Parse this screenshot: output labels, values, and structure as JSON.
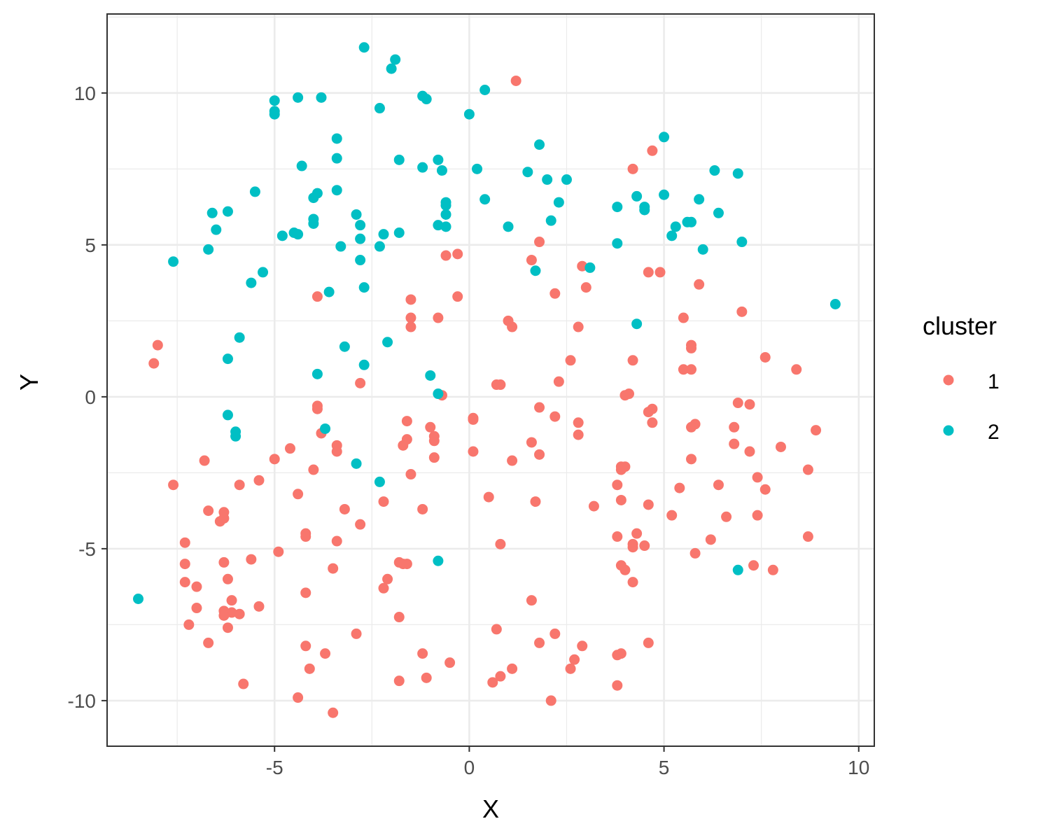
{
  "chart_data": {
    "type": "scatter",
    "title": "",
    "xlabel": "X",
    "ylabel": "Y",
    "xlim": [
      -9.3,
      10.4
    ],
    "ylim": [
      -11.5,
      12.6
    ],
    "x_ticks": [
      -5,
      0,
      5,
      10
    ],
    "y_ticks": [
      -10,
      -5,
      0,
      5,
      10
    ],
    "x_tick_labels": [
      "-5",
      "0",
      "5",
      "10"
    ],
    "y_tick_labels": [
      "-10",
      "-5",
      "0",
      "5",
      "10"
    ],
    "grid": true,
    "legend": {
      "title": "cluster",
      "position": "right"
    },
    "series": [
      {
        "name": "1",
        "color": "#F8766D",
        "points": [
          [
            1.2,
            10.4
          ],
          [
            4.7,
            8.1
          ],
          [
            4.2,
            7.5
          ],
          [
            1.8,
            5.1
          ],
          [
            -0.3,
            4.7
          ],
          [
            -0.6,
            4.65
          ],
          [
            1.6,
            4.5
          ],
          [
            2.9,
            4.3
          ],
          [
            4.6,
            4.1
          ],
          [
            4.9,
            4.1
          ],
          [
            5.9,
            3.7
          ],
          [
            3.0,
            3.6
          ],
          [
            2.2,
            3.4
          ],
          [
            -3.9,
            3.3
          ],
          [
            -0.3,
            3.3
          ],
          [
            -1.5,
            3.2
          ],
          [
            7.0,
            2.8
          ],
          [
            -1.5,
            2.6
          ],
          [
            -0.8,
            2.6
          ],
          [
            5.5,
            2.6
          ],
          [
            1.0,
            2.5
          ],
          [
            1.1,
            2.3
          ],
          [
            -1.5,
            2.3
          ],
          [
            2.8,
            2.3
          ],
          [
            -8.0,
            1.7
          ],
          [
            5.7,
            1.7
          ],
          [
            5.7,
            1.6
          ],
          [
            7.6,
            1.3
          ],
          [
            4.2,
            1.2
          ],
          [
            2.6,
            1.2
          ],
          [
            -8.1,
            1.1
          ],
          [
            5.5,
            0.9
          ],
          [
            5.7,
            0.9
          ],
          [
            8.4,
            0.9
          ],
          [
            -2.8,
            0.45
          ],
          [
            2.3,
            0.5
          ],
          [
            0.7,
            0.4
          ],
          [
            0.8,
            0.4
          ],
          [
            -0.7,
            0.05
          ],
          [
            4.1,
            0.1
          ],
          [
            4.0,
            0.05
          ],
          [
            6.9,
            -0.2
          ],
          [
            7.2,
            -0.25
          ],
          [
            -3.9,
            -0.3
          ],
          [
            -3.9,
            -0.4
          ],
          [
            1.8,
            -0.35
          ],
          [
            4.7,
            -0.4
          ],
          [
            4.6,
            -0.5
          ],
          [
            0.1,
            -0.7
          ],
          [
            0.1,
            -0.75
          ],
          [
            2.2,
            -0.65
          ],
          [
            -1.6,
            -0.8
          ],
          [
            2.8,
            -0.85
          ],
          [
            4.7,
            -0.85
          ],
          [
            5.8,
            -0.9
          ],
          [
            5.7,
            -1.0
          ],
          [
            6.8,
            -1.0
          ],
          [
            -1.0,
            -1.0
          ],
          [
            -0.9,
            -1.3
          ],
          [
            8.9,
            -1.1
          ],
          [
            -3.8,
            -1.2
          ],
          [
            2.8,
            -1.25
          ],
          [
            -1.6,
            -1.4
          ],
          [
            -0.9,
            -1.45
          ],
          [
            1.6,
            -1.5
          ],
          [
            -3.4,
            -1.6
          ],
          [
            -1.7,
            -1.6
          ],
          [
            8.0,
            -1.65
          ],
          [
            -4.6,
            -1.7
          ],
          [
            6.8,
            -1.55
          ],
          [
            -3.4,
            -1.8
          ],
          [
            0.1,
            -1.8
          ],
          [
            7.2,
            -1.8
          ],
          [
            1.8,
            -1.9
          ],
          [
            -0.9,
            -2.0
          ],
          [
            -5.0,
            -2.05
          ],
          [
            -6.8,
            -2.1
          ],
          [
            1.1,
            -2.1
          ],
          [
            5.7,
            -2.05
          ],
          [
            3.9,
            -2.3
          ],
          [
            4.0,
            -2.3
          ],
          [
            3.9,
            -2.4
          ],
          [
            -4.0,
            -2.4
          ],
          [
            8.7,
            -2.4
          ],
          [
            -1.5,
            -2.55
          ],
          [
            7.4,
            -2.65
          ],
          [
            -5.4,
            -2.75
          ],
          [
            -7.6,
            -2.9
          ],
          [
            -5.9,
            -2.9
          ],
          [
            3.8,
            -2.9
          ],
          [
            6.4,
            -2.9
          ],
          [
            5.4,
            -3.0
          ],
          [
            7.6,
            -3.05
          ],
          [
            -4.4,
            -3.2
          ],
          [
            0.5,
            -3.3
          ],
          [
            3.9,
            -3.4
          ],
          [
            1.7,
            -3.45
          ],
          [
            -2.2,
            -3.45
          ],
          [
            3.2,
            -3.6
          ],
          [
            4.6,
            -3.55
          ],
          [
            -3.2,
            -3.7
          ],
          [
            -1.2,
            -3.7
          ],
          [
            -6.7,
            -3.75
          ],
          [
            -6.3,
            -3.8
          ],
          [
            5.2,
            -3.9
          ],
          [
            7.4,
            -3.9
          ],
          [
            6.6,
            -3.95
          ],
          [
            -6.3,
            -4.0
          ],
          [
            -6.4,
            -4.1
          ],
          [
            -2.8,
            -4.2
          ],
          [
            4.3,
            -4.5
          ],
          [
            -4.2,
            -4.5
          ],
          [
            3.8,
            -4.6
          ],
          [
            -4.2,
            -4.6
          ],
          [
            8.7,
            -4.6
          ],
          [
            6.2,
            -4.7
          ],
          [
            -3.4,
            -4.75
          ],
          [
            -7.3,
            -4.8
          ],
          [
            0.8,
            -4.85
          ],
          [
            4.2,
            -4.85
          ],
          [
            4.2,
            -4.95
          ],
          [
            4.5,
            -4.9
          ],
          [
            -4.9,
            -5.1
          ],
          [
            5.8,
            -5.15
          ],
          [
            -5.6,
            -5.35
          ],
          [
            -7.3,
            -5.5
          ],
          [
            -6.3,
            -5.45
          ],
          [
            -1.8,
            -5.45
          ],
          [
            -1.6,
            -5.5
          ],
          [
            -1.7,
            -5.5
          ],
          [
            3.9,
            -5.55
          ],
          [
            7.3,
            -5.55
          ],
          [
            4.0,
            -5.7
          ],
          [
            -3.5,
            -5.65
          ],
          [
            7.8,
            -5.7
          ],
          [
            -7.3,
            -6.1
          ],
          [
            4.2,
            -6.1
          ],
          [
            -6.2,
            -6.0
          ],
          [
            -2.1,
            -6.0
          ],
          [
            -7.0,
            -6.25
          ],
          [
            -2.2,
            -6.3
          ],
          [
            -4.2,
            -6.45
          ],
          [
            1.6,
            -6.7
          ],
          [
            -6.1,
            -6.7
          ],
          [
            -5.4,
            -6.9
          ],
          [
            -7.0,
            -6.95
          ],
          [
            -6.3,
            -7.05
          ],
          [
            -6.1,
            -7.1
          ],
          [
            -5.9,
            -7.15
          ],
          [
            -6.3,
            -7.2
          ],
          [
            -1.8,
            -7.25
          ],
          [
            -7.2,
            -7.5
          ],
          [
            -6.2,
            -7.6
          ],
          [
            0.7,
            -7.65
          ],
          [
            -2.9,
            -7.8
          ],
          [
            2.2,
            -7.8
          ],
          [
            -6.7,
            -8.1
          ],
          [
            1.8,
            -8.1
          ],
          [
            4.6,
            -8.1
          ],
          [
            2.9,
            -8.2
          ],
          [
            -4.2,
            -8.2
          ],
          [
            -3.7,
            -8.45
          ],
          [
            -1.2,
            -8.45
          ],
          [
            3.9,
            -8.45
          ],
          [
            3.8,
            -8.5
          ],
          [
            2.7,
            -8.65
          ],
          [
            -0.5,
            -8.75
          ],
          [
            2.6,
            -8.95
          ],
          [
            1.1,
            -8.95
          ],
          [
            -4.1,
            -8.95
          ],
          [
            0.8,
            -9.2
          ],
          [
            -1.1,
            -9.25
          ],
          [
            -1.8,
            -9.35
          ],
          [
            0.6,
            -9.4
          ],
          [
            -5.8,
            -9.45
          ],
          [
            3.8,
            -9.5
          ],
          [
            -4.4,
            -9.9
          ],
          [
            2.1,
            -10.0
          ],
          [
            -3.5,
            -10.4
          ]
        ]
      },
      {
        "name": "2",
        "color": "#00BFC4",
        "points": [
          [
            -2.7,
            11.5
          ],
          [
            -1.9,
            11.1
          ],
          [
            -2.0,
            10.8
          ],
          [
            0.4,
            10.1
          ],
          [
            -1.2,
            9.9
          ],
          [
            -1.1,
            9.8
          ],
          [
            -4.4,
            9.85
          ],
          [
            -3.8,
            9.85
          ],
          [
            -5.0,
            9.75
          ],
          [
            -5.0,
            9.4
          ],
          [
            -5.0,
            9.3
          ],
          [
            -2.3,
            9.5
          ],
          [
            0.0,
            9.3
          ],
          [
            5.0,
            8.55
          ],
          [
            -3.4,
            8.5
          ],
          [
            1.8,
            8.3
          ],
          [
            -3.4,
            7.85
          ],
          [
            -1.8,
            7.8
          ],
          [
            -0.8,
            7.8
          ],
          [
            -4.3,
            7.6
          ],
          [
            -1.2,
            7.55
          ],
          [
            0.2,
            7.5
          ],
          [
            -0.7,
            7.45
          ],
          [
            1.5,
            7.4
          ],
          [
            6.3,
            7.45
          ],
          [
            6.9,
            7.35
          ],
          [
            2.0,
            7.15
          ],
          [
            2.5,
            7.15
          ],
          [
            -5.5,
            6.75
          ],
          [
            -3.9,
            6.7
          ],
          [
            -3.4,
            6.8
          ],
          [
            -4.0,
            6.55
          ],
          [
            5.0,
            6.65
          ],
          [
            4.3,
            6.6
          ],
          [
            0.4,
            6.5
          ],
          [
            5.9,
            6.5
          ],
          [
            2.3,
            6.4
          ],
          [
            -0.6,
            6.4
          ],
          [
            -0.6,
            6.3
          ],
          [
            4.5,
            6.25
          ],
          [
            4.5,
            6.15
          ],
          [
            3.8,
            6.25
          ],
          [
            -6.6,
            6.05
          ],
          [
            -6.2,
            6.1
          ],
          [
            -2.9,
            6.0
          ],
          [
            -0.6,
            6.0
          ],
          [
            6.4,
            6.05
          ],
          [
            -4.0,
            5.85
          ],
          [
            -4.0,
            5.7
          ],
          [
            2.1,
            5.8
          ],
          [
            5.6,
            5.75
          ],
          [
            5.7,
            5.75
          ],
          [
            -2.8,
            5.65
          ],
          [
            -0.8,
            5.65
          ],
          [
            -0.6,
            5.6
          ],
          [
            1.0,
            5.6
          ],
          [
            5.3,
            5.6
          ],
          [
            -6.5,
            5.5
          ],
          [
            -4.5,
            5.4
          ],
          [
            -4.4,
            5.35
          ],
          [
            -4.8,
            5.3
          ],
          [
            -1.8,
            5.4
          ],
          [
            -2.2,
            5.35
          ],
          [
            5.2,
            5.3
          ],
          [
            -2.8,
            5.2
          ],
          [
            7.0,
            5.1
          ],
          [
            3.8,
            5.05
          ],
          [
            -3.3,
            4.95
          ],
          [
            -2.3,
            4.95
          ],
          [
            -6.7,
            4.85
          ],
          [
            6.0,
            4.85
          ],
          [
            -2.8,
            4.5
          ],
          [
            -7.6,
            4.45
          ],
          [
            3.1,
            4.25
          ],
          [
            1.7,
            4.15
          ],
          [
            -5.3,
            4.1
          ],
          [
            -5.6,
            3.75
          ],
          [
            -2.7,
            3.6
          ],
          [
            -3.6,
            3.45
          ],
          [
            9.4,
            3.05
          ],
          [
            4.3,
            2.4
          ],
          [
            -5.9,
            1.95
          ],
          [
            -2.1,
            1.8
          ],
          [
            -3.2,
            1.65
          ],
          [
            -6.2,
            1.25
          ],
          [
            -2.7,
            1.05
          ],
          [
            -1.0,
            0.7
          ],
          [
            -3.9,
            0.75
          ],
          [
            -0.8,
            0.1
          ],
          [
            -6.2,
            -0.6
          ],
          [
            -3.7,
            -1.05
          ],
          [
            -6.0,
            -1.15
          ],
          [
            -6.0,
            -1.3
          ],
          [
            -2.9,
            -2.2
          ],
          [
            -2.3,
            -2.8
          ],
          [
            -0.8,
            -5.4
          ],
          [
            6.9,
            -5.7
          ],
          [
            -8.5,
            -6.65
          ]
        ]
      }
    ]
  }
}
